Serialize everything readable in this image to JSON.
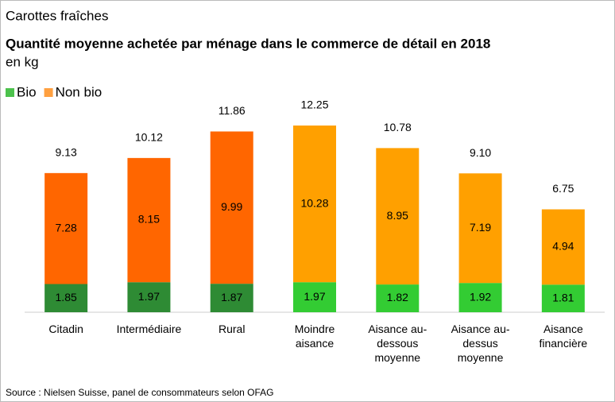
{
  "chart_data": {
    "type": "stacked_bar",
    "supertitle": "Carottes fraîches",
    "title": "Quantité moyenne achetée par ménage dans le commerce de détail en 2018",
    "subtitle": "en kg",
    "categories": [
      "Citadin",
      "Intermédiaire",
      "Rural",
      "Moindre\naisance",
      "Aisance au-\ndessous\nmoyenne",
      "Aisance au-\ndessus\nmoyenne",
      "Aisance\nfinancière"
    ],
    "series": [
      {
        "name": "Bio",
        "color": "#4cc24c",
        "colors": [
          "#2e8b34",
          "#2e8b34",
          "#2e8b34",
          "#33cc33",
          "#33cc33",
          "#33cc33",
          "#33cc33"
        ],
        "values": [
          1.85,
          1.97,
          1.87,
          1.97,
          1.82,
          1.92,
          1.81
        ]
      },
      {
        "name": "Non bio",
        "color": "#ffa040",
        "colors": [
          "#ff6600",
          "#ff6600",
          "#ff6600",
          "#ffa000",
          "#ffa000",
          "#ffa000",
          "#ffa000"
        ],
        "values": [
          7.28,
          8.15,
          9.99,
          10.28,
          8.95,
          7.19,
          4.94
        ]
      }
    ],
    "totals": [
      9.13,
      10.12,
      11.86,
      12.25,
      10.78,
      9.1,
      6.75
    ],
    "total_labels": [
      "9.13",
      "10.12",
      "11.86",
      "12.25",
      "10.78",
      "9.10",
      "6.75"
    ],
    "source": "Source : Nielsen Suisse, panel de consommateurs selon OFAG",
    "legend": "top-left"
  }
}
